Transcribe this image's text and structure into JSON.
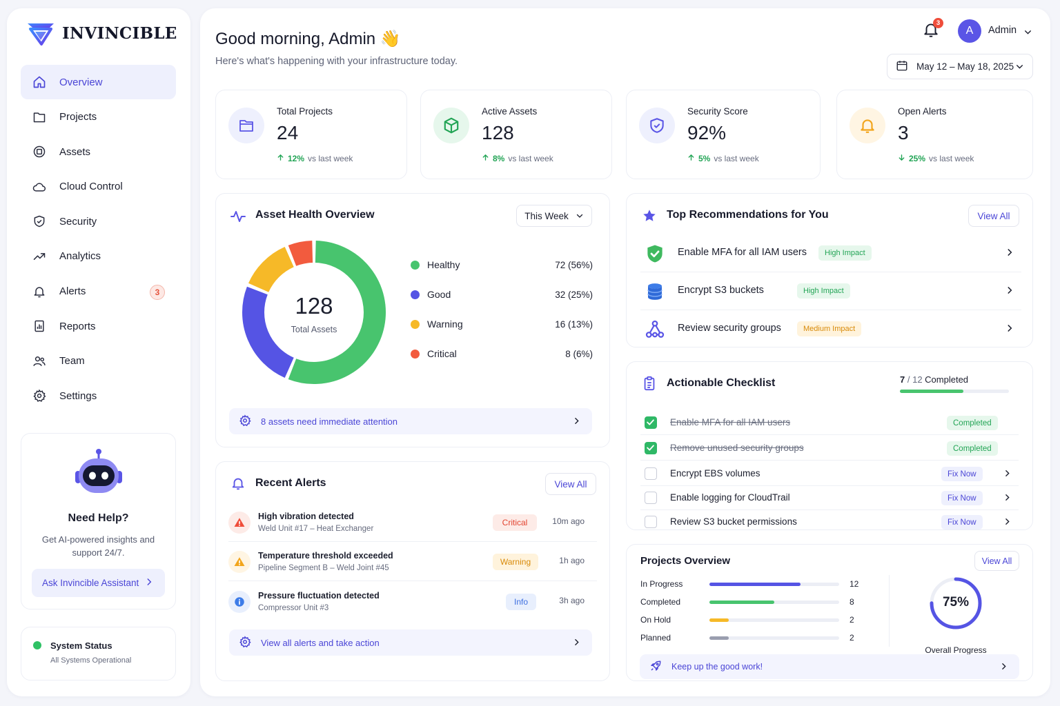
{
  "brand": {
    "name": "INVINCIBLE"
  },
  "nav": [
    {
      "label": "Overview",
      "icon": "home-icon",
      "active": true
    },
    {
      "label": "Projects",
      "icon": "folder-icon"
    },
    {
      "label": "Assets",
      "icon": "asset-icon"
    },
    {
      "label": "Cloud Control",
      "icon": "cloud-icon"
    },
    {
      "label": "Security",
      "icon": "shield-icon"
    },
    {
      "label": "Analytics",
      "icon": "trend-icon"
    },
    {
      "label": "Alerts",
      "icon": "bell-icon",
      "badge": "3"
    },
    {
      "label": "Reports",
      "icon": "report-icon"
    },
    {
      "label": "Team",
      "icon": "team-icon"
    },
    {
      "label": "Settings",
      "icon": "gear-icon"
    }
  ],
  "help": {
    "title": "Need Help?",
    "description": "Get AI-powered insights and support 24/7.",
    "button": "Ask Invincible Assistant"
  },
  "system_status": {
    "title": "System Status",
    "subtitle": "All Systems Operational"
  },
  "header": {
    "greeting": "Good morning, Admin 👋",
    "subtitle": "Here's what's happening with your infrastructure today.",
    "notifications": "3",
    "avatar_letter": "A",
    "user": "Admin",
    "date_range": "May 12 – May 18, 2025"
  },
  "stats": [
    {
      "label": "Total Projects",
      "value": "24",
      "pct": "12%",
      "direction": "up",
      "suffix": "vs last week",
      "icon": "folder-icon",
      "bg": "#eef0fd",
      "color": "#5a55e6"
    },
    {
      "label": "Active Assets",
      "value": "128",
      "pct": "8%",
      "direction": "up",
      "suffix": "vs last week",
      "icon": "cube-icon",
      "bg": "#e6f7ec",
      "color": "#22a455"
    },
    {
      "label": "Security Score",
      "value": "92%",
      "pct": "5%",
      "direction": "up",
      "suffix": "vs last week",
      "icon": "shield-icon",
      "bg": "#eef0fd",
      "color": "#5a55e6"
    },
    {
      "label": "Open Alerts",
      "value": "3",
      "pct": "25%",
      "direction": "down",
      "suffix": "vs last week",
      "icon": "bell-icon",
      "bg": "#fff5e3",
      "color": "#f2a51c"
    }
  ],
  "asset_health": {
    "title": "Asset Health Overview",
    "filter": "This Week",
    "total": "128",
    "total_label": "Total Assets",
    "items": [
      {
        "label": "Healthy",
        "value": "72 (56%)",
        "count": 72,
        "color": "#48c46e"
      },
      {
        "label": "Good",
        "value": "32 (25%)",
        "count": 32,
        "color": "#5554e4"
      },
      {
        "label": "Warning",
        "value": "16 (13%)",
        "count": 16,
        "color": "#f6b928"
      },
      {
        "label": "Critical",
        "value": "8 (6%)",
        "count": 8,
        "color": "#f25b3e"
      }
    ],
    "banner": "8 assets need immediate attention"
  },
  "recent_alerts": {
    "title": "Recent Alerts",
    "view_all": "View All",
    "items": [
      {
        "title": "High vibration detected",
        "subtitle": "Weld Unit #17 – Heat Exchanger",
        "level": "Critical",
        "time": "10m ago",
        "icon": "warning-triangle-icon"
      },
      {
        "title": "Temperature threshold exceeded",
        "subtitle": "Pipeline Segment B – Weld Joint #45",
        "level": "Warning",
        "time": "1h ago",
        "icon": "warning-triangle-icon"
      },
      {
        "title": "Pressure fluctuation detected",
        "subtitle": "Compressor Unit #3",
        "level": "Info",
        "time": "3h ago",
        "icon": "info-icon"
      }
    ],
    "banner": "View all alerts and take action"
  },
  "recommendations": {
    "title": "Top Recommendations for You",
    "view_all": "View All",
    "items": [
      {
        "label": "Enable MFA for all IAM users",
        "impact": "High Impact",
        "icon": "shield-check-icon"
      },
      {
        "label": "Encrypt S3 buckets",
        "impact": "High Impact",
        "icon": "database-icon"
      },
      {
        "label": "Review security groups",
        "impact": "Medium Impact",
        "icon": "network-icon"
      }
    ]
  },
  "checklist": {
    "title": "Actionable Checklist",
    "done": "7",
    "total": "/ 12",
    "completed_label": "Completed",
    "progress": 0.583,
    "items": [
      {
        "label": "Enable MFA for all IAM users",
        "done": true,
        "status": "Completed"
      },
      {
        "label": "Remove unused security groups",
        "done": true,
        "status": "Completed"
      },
      {
        "label": "Encrypt EBS volumes",
        "done": false,
        "status": "Fix Now"
      },
      {
        "label": "Enable logging for CloudTrail",
        "done": false,
        "status": "Fix Now"
      },
      {
        "label": "Review S3 bucket permissions",
        "done": false,
        "status": "Fix Now"
      }
    ]
  },
  "projects": {
    "title": "Projects Overview",
    "view_all": "View All",
    "rows": [
      {
        "label": "In Progress",
        "value": "12",
        "fraction": 0.7,
        "color": "#5554e4"
      },
      {
        "label": "Completed",
        "value": "8",
        "fraction": 0.5,
        "color": "#48c46e"
      },
      {
        "label": "On Hold",
        "value": "2",
        "fraction": 0.15,
        "color": "#f6b928"
      },
      {
        "label": "Planned",
        "value": "2",
        "fraction": 0.15,
        "color": "#9a9eaf"
      }
    ],
    "overall": "75%",
    "overall_fraction": 0.75,
    "overall_label": "Overall Progress",
    "banner": "Keep up the good work!"
  }
}
